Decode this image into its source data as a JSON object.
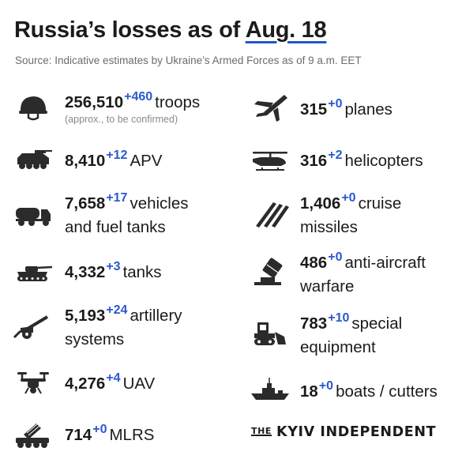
{
  "header": {
    "title_prefix": "Russia’s losses as of",
    "title_date": "Aug. 18",
    "source": "Source: Indicative estimates by Ukraine’s Armed Forces as of 9 a.m. EET"
  },
  "items": [
    {
      "icon": "helmet-icon",
      "value": "256,510",
      "increase": "+460",
      "label": "troops",
      "label2": "",
      "note": "(approx., to be confirmed)"
    },
    {
      "icon": "apv-icon",
      "value": "8,410",
      "increase": "+12",
      "label": "APV",
      "label2": "",
      "note": ""
    },
    {
      "icon": "fuel-truck-icon",
      "value": "7,658",
      "increase": "+17",
      "label": "vehicles",
      "label2": "and fuel tanks",
      "note": ""
    },
    {
      "icon": "tank-icon",
      "value": "4,332",
      "increase": "+3",
      "label": "tanks",
      "label2": "",
      "note": ""
    },
    {
      "icon": "artillery-icon",
      "value": "5,193",
      "increase": "+24",
      "label": "artillery",
      "label2": "systems",
      "note": ""
    },
    {
      "icon": "drone-icon",
      "value": "4,276",
      "increase": "+4",
      "label": "UAV",
      "label2": "",
      "note": ""
    },
    {
      "icon": "mlrs-icon",
      "value": "714",
      "increase": "+0",
      "label": "MLRS",
      "label2": "",
      "note": ""
    },
    {
      "icon": "jet-icon",
      "value": "315",
      "increase": "+0",
      "label": "planes",
      "label2": "",
      "note": ""
    },
    {
      "icon": "helicopter-icon",
      "value": "316",
      "increase": "+2",
      "label": "helicopters",
      "label2": "",
      "note": ""
    },
    {
      "icon": "missiles-icon",
      "value": "1,406",
      "increase": "+0",
      "label": "cruise",
      "label2": "missiles",
      "note": ""
    },
    {
      "icon": "anti-aircraft-icon",
      "value": "486",
      "increase": "+0",
      "label": "anti-aircraft",
      "label2": "warfare",
      "note": ""
    },
    {
      "icon": "bulldozer-icon",
      "value": "783",
      "increase": "+10",
      "label": "special",
      "label2": "equipment",
      "note": ""
    },
    {
      "icon": "ship-icon",
      "value": "18",
      "increase": "+0",
      "label": "boats / cutters",
      "label2": "",
      "note": ""
    }
  ],
  "footer": {
    "brand_the": "THE",
    "brand_name": "KYIV INDEPENDENT"
  },
  "colors": {
    "accent": "#2c58cf",
    "text": "#1b1b1b",
    "muted": "#6c6c6c",
    "icon": "#2b2b2b"
  }
}
